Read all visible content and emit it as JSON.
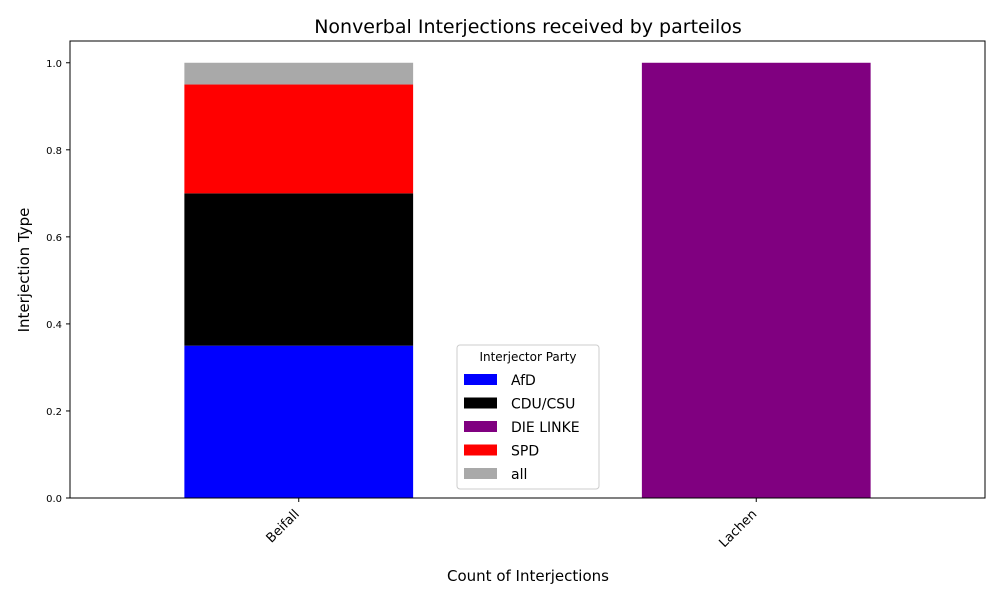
{
  "chart_data": {
    "type": "bar",
    "stacked": true,
    "title": "Nonverbal Interjections received by parteilos",
    "xlabel": "Count of Interjections",
    "ylabel": "Interjection Type",
    "categories": [
      "Beifall",
      "Lachen"
    ],
    "ylim": [
      0,
      1.05
    ],
    "yticks": [
      "0.0",
      "0.2",
      "0.4",
      "0.6",
      "0.8",
      "1.0"
    ],
    "grid": false,
    "legend": {
      "title": "Interjector Party",
      "placement": "lower center"
    },
    "series": [
      {
        "name": "AfD",
        "color": "#0000ff",
        "values": [
          0.35,
          0
        ]
      },
      {
        "name": "CDU/CSU",
        "color": "#000000",
        "values": [
          0.35,
          0
        ]
      },
      {
        "name": "DIE LINKE",
        "color": "#800080",
        "values": [
          0,
          1.0
        ]
      },
      {
        "name": "SPD",
        "color": "#ff0000",
        "values": [
          0.25,
          0
        ]
      },
      {
        "name": "all",
        "color": "#a9a9a9",
        "values": [
          0.05,
          0
        ]
      }
    ]
  }
}
